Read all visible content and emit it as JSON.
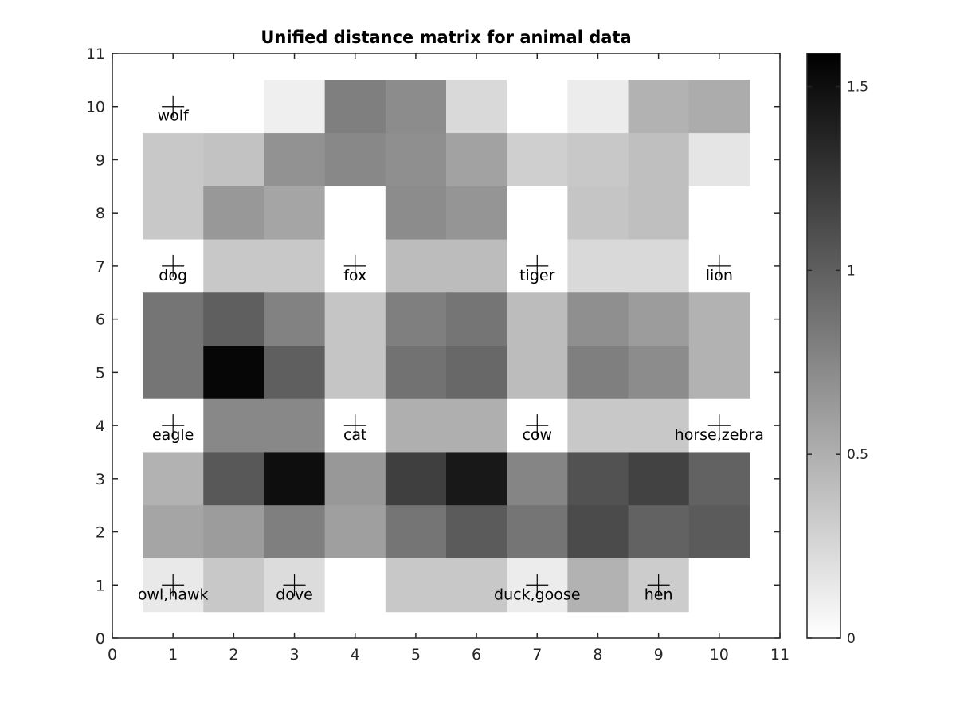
{
  "chart_data": {
    "type": "heatmap",
    "title": "Unified distance matrix for animal data",
    "xlabel": "",
    "ylabel": "",
    "xlim": [
      0,
      11
    ],
    "ylim": [
      0,
      11
    ],
    "x_ticks": [
      0,
      1,
      2,
      3,
      4,
      5,
      6,
      7,
      8,
      9,
      10,
      11
    ],
    "y_ticks": [
      0,
      1,
      2,
      3,
      4,
      5,
      6,
      7,
      8,
      9,
      10,
      11
    ],
    "colormap": "inverted gray (white = 0, black = max)",
    "colorbar": {
      "range": [
        0,
        1.59
      ],
      "ticks": [
        0,
        0.5,
        1,
        1.5
      ],
      "tick_labels": [
        "0",
        "0.5",
        "1",
        "1.5"
      ]
    },
    "grid": false,
    "row_y": [
      10,
      9,
      8,
      7,
      6,
      5,
      4,
      3,
      2,
      1
    ],
    "col_x": [
      1,
      2,
      3,
      4,
      5,
      6,
      7,
      8,
      9,
      10
    ],
    "values": [
      [
        0.0,
        0.0,
        0.1,
        0.8,
        0.72,
        0.24,
        0.0,
        0.12,
        0.48,
        0.52
      ],
      [
        0.34,
        0.38,
        0.68,
        0.74,
        0.7,
        0.58,
        0.3,
        0.34,
        0.4,
        0.16
      ],
      [
        0.34,
        0.64,
        0.56,
        0.0,
        0.72,
        0.66,
        0.0,
        0.36,
        0.4,
        0.0
      ],
      [
        0.0,
        0.34,
        0.34,
        0.0,
        0.42,
        0.42,
        0.0,
        0.24,
        0.24,
        0.0
      ],
      [
        0.86,
        1.0,
        0.78,
        0.36,
        0.8,
        0.86,
        0.42,
        0.7,
        0.62,
        0.48
      ],
      [
        0.86,
        1.55,
        1.0,
        0.36,
        0.88,
        0.94,
        0.42,
        0.8,
        0.72,
        0.48
      ],
      [
        0.0,
        0.74,
        0.74,
        0.0,
        0.5,
        0.5,
        0.0,
        0.34,
        0.34,
        0.0
      ],
      [
        0.48,
        1.04,
        1.5,
        0.64,
        1.2,
        1.44,
        0.76,
        1.08,
        1.18,
        0.98
      ],
      [
        0.56,
        0.62,
        0.8,
        0.6,
        0.86,
        1.02,
        0.86,
        1.12,
        0.98,
        1.02
      ],
      [
        0.14,
        0.34,
        0.22,
        0.0,
        0.34,
        0.34,
        0.12,
        0.48,
        0.32,
        0.0
      ]
    ],
    "annotations": [
      {
        "label": "wolf",
        "x": 1,
        "y": 10
      },
      {
        "label": "dog",
        "x": 1,
        "y": 7
      },
      {
        "label": "fox",
        "x": 4,
        "y": 7
      },
      {
        "label": "tiger",
        "x": 7,
        "y": 7
      },
      {
        "label": "lion",
        "x": 10,
        "y": 7
      },
      {
        "label": "eagle",
        "x": 1,
        "y": 4
      },
      {
        "label": "cat",
        "x": 4,
        "y": 4
      },
      {
        "label": "cow",
        "x": 7,
        "y": 4
      },
      {
        "label": "horse,zebra",
        "x": 10,
        "y": 4
      },
      {
        "label": "owl,hawk",
        "x": 1,
        "y": 1
      },
      {
        "label": "dove",
        "x": 3,
        "y": 1
      },
      {
        "label": "duck,goose",
        "x": 7,
        "y": 1
      },
      {
        "label": "hen",
        "x": 9,
        "y": 1
      }
    ]
  }
}
